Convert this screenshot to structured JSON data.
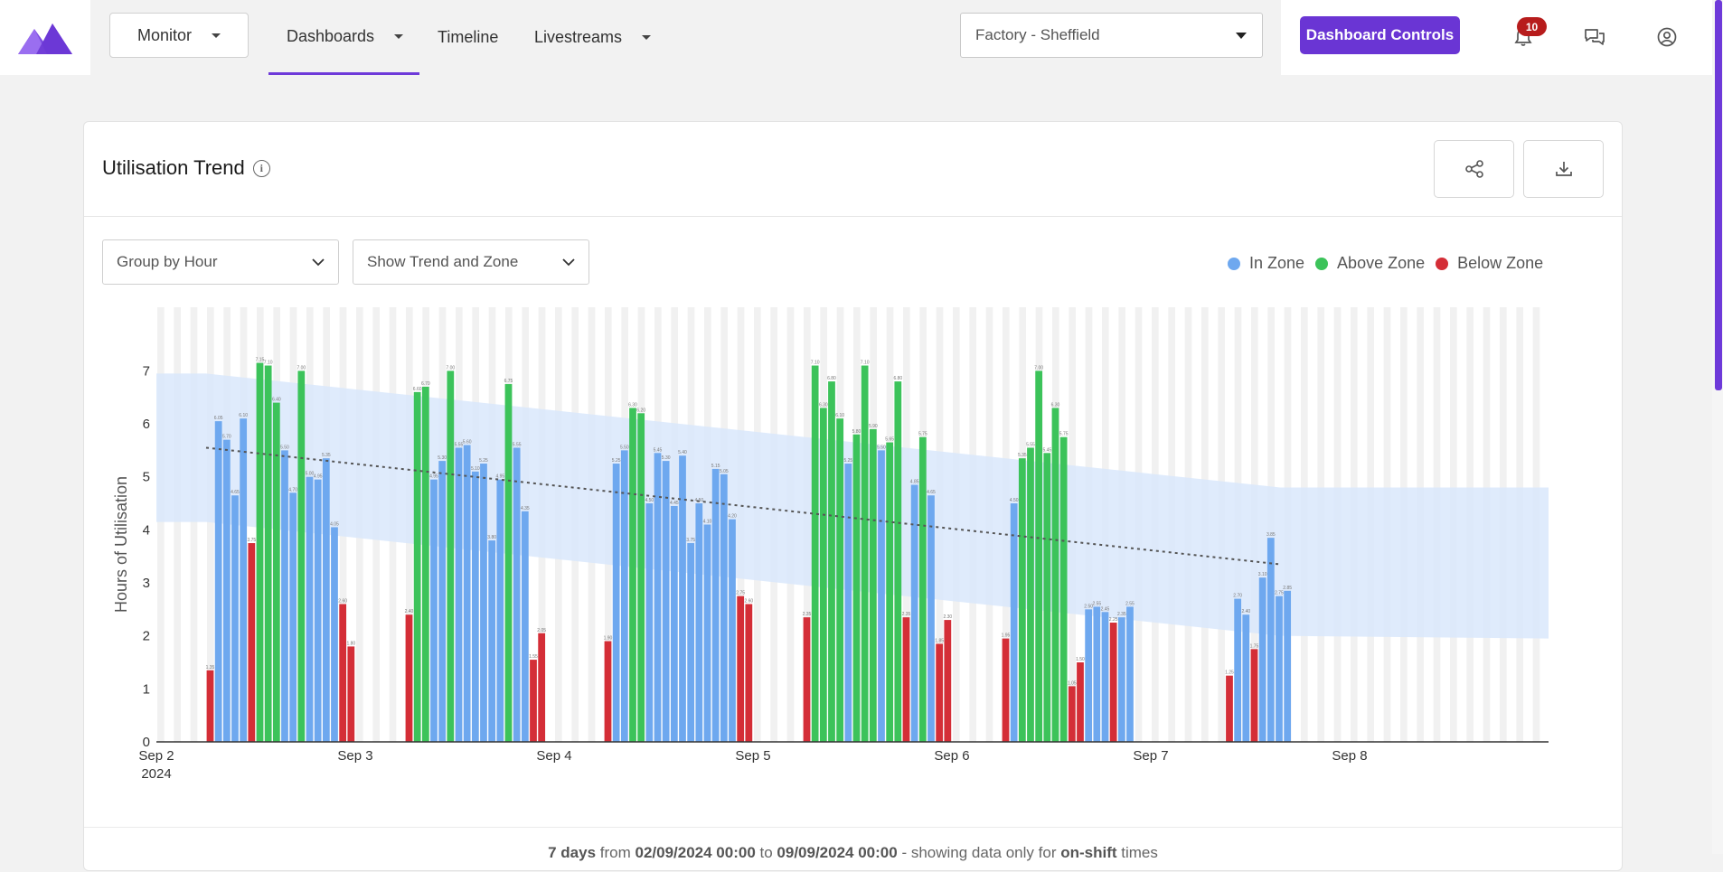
{
  "topbar": {
    "monitor_label": "Monitor",
    "tabs": [
      "Dashboards",
      "Timeline",
      "Livestreams"
    ],
    "site_value": "Factory - Sheffield",
    "dashboard_controls_label": "Dashboard Controls",
    "notification_count": "10",
    "accent_color": "#6a35d4"
  },
  "card": {
    "title": "Utilisation Trend",
    "group_by_value": "Group by Hour",
    "show_value": "Show Trend and Zone",
    "footer": {
      "days": "7 days",
      "from_word": " from ",
      "start": "02/09/2024 00:00",
      "to_word": " to ",
      "end": "09/09/2024 00:00",
      "showing": " - showing data only for ",
      "shift": "on-shift",
      "times": " times"
    }
  },
  "chart_data": {
    "type": "bar",
    "title": "Utilisation Trend",
    "ylabel": "Hours of Utilisation",
    "xlabel": "",
    "ylim": [
      0,
      8.2
    ],
    "yticks": [
      0,
      1,
      2,
      3,
      4,
      5,
      6,
      7
    ],
    "xlim_days": [
      0,
      7
    ],
    "xtick_labels": [
      "Sep 2",
      "Sep 3",
      "Sep 4",
      "Sep 5",
      "Sep 6",
      "Sep 7",
      "Sep 8"
    ],
    "xtick_year": "2024",
    "legend": [
      {
        "name": "In Zone",
        "color": "#6ea8ef"
      },
      {
        "name": "Above Zone",
        "color": "#3cc35a"
      },
      {
        "name": "Below Zone",
        "color": "#d42e37"
      }
    ],
    "legend_position": "top-right",
    "zone": {
      "color": "#d9e8fb",
      "upper": [
        [
          0,
          6.95
        ],
        [
          0.25,
          6.95
        ],
        [
          5.65,
          4.8
        ],
        [
          7,
          4.8
        ]
      ],
      "lower": [
        [
          0,
          4.15
        ],
        [
          0.25,
          4.15
        ],
        [
          5.65,
          2.0
        ],
        [
          7,
          1.95
        ]
      ]
    },
    "trend": {
      "from": [
        0.25,
        5.55
      ],
      "to": [
        5.65,
        3.35
      ],
      "color": "#555555"
    },
    "days": [
      {
        "day": 0,
        "hour_start": 6,
        "values": [
          1.35,
          6.05,
          5.7,
          4.65,
          6.1,
          3.75,
          7.15,
          7.1,
          6.4,
          5.5,
          4.7,
          7.0,
          5.0,
          4.95,
          5.35,
          4.05,
          2.6,
          1.8
        ],
        "zones": [
          "b",
          "i",
          "i",
          "i",
          "i",
          "b",
          "a",
          "a",
          "a",
          "i",
          "i",
          "a",
          "i",
          "i",
          "i",
          "i",
          "b",
          "b"
        ]
      },
      {
        "day": 1,
        "hour_start": 6,
        "values": [
          2.4,
          6.6,
          6.7,
          4.95,
          5.3,
          7.0,
          5.55,
          5.6,
          5.1,
          5.25,
          3.8,
          4.95,
          6.75,
          5.55,
          4.35,
          1.55,
          2.05
        ],
        "zones": [
          "b",
          "a",
          "a",
          "i",
          "i",
          "a",
          "i",
          "i",
          "i",
          "i",
          "i",
          "i",
          "a",
          "i",
          "i",
          "b",
          "b"
        ]
      },
      {
        "day": 2,
        "hour_start": 6,
        "values": [
          1.9,
          5.25,
          5.5,
          6.3,
          6.2,
          4.5,
          5.45,
          5.3,
          4.45,
          5.4,
          3.75,
          4.5,
          4.1,
          5.15,
          5.05,
          4.2,
          2.75,
          2.6
        ],
        "zones": [
          "b",
          "i",
          "i",
          "a",
          "a",
          "i",
          "i",
          "i",
          "i",
          "i",
          "i",
          "i",
          "i",
          "i",
          "i",
          "i",
          "b",
          "b"
        ]
      },
      {
        "day": 3,
        "hour_start": 6,
        "values": [
          2.35,
          7.1,
          6.3,
          6.8,
          6.1,
          5.25,
          5.8,
          7.1,
          5.9,
          5.5,
          5.65,
          6.8,
          2.35,
          4.85,
          5.75,
          4.65,
          1.85,
          2.3
        ],
        "zones": [
          "b",
          "a",
          "a",
          "a",
          "a",
          "i",
          "a",
          "a",
          "a",
          "i",
          "a",
          "a",
          "b",
          "i",
          "a",
          "i",
          "b",
          "b"
        ]
      },
      {
        "day": 4,
        "hour_start": 6,
        "values": [
          1.95,
          4.5,
          5.35,
          5.55,
          7.0,
          5.45,
          6.3,
          5.75,
          1.05,
          1.5,
          2.5,
          2.55,
          2.45,
          2.25,
          2.35,
          2.55
        ],
        "zones": [
          "b",
          "i",
          "a",
          "a",
          "a",
          "a",
          "a",
          "a",
          "b",
          "b",
          "i",
          "i",
          "i",
          "b",
          "i",
          "i"
        ]
      },
      {
        "day": 5,
        "hour_start": 9,
        "values": [
          1.25,
          2.7,
          2.4,
          1.75,
          3.1,
          3.85,
          2.75,
          2.85
        ],
        "zones": [
          "b",
          "i",
          "i",
          "b",
          "i",
          "i",
          "i",
          "i"
        ]
      }
    ]
  }
}
